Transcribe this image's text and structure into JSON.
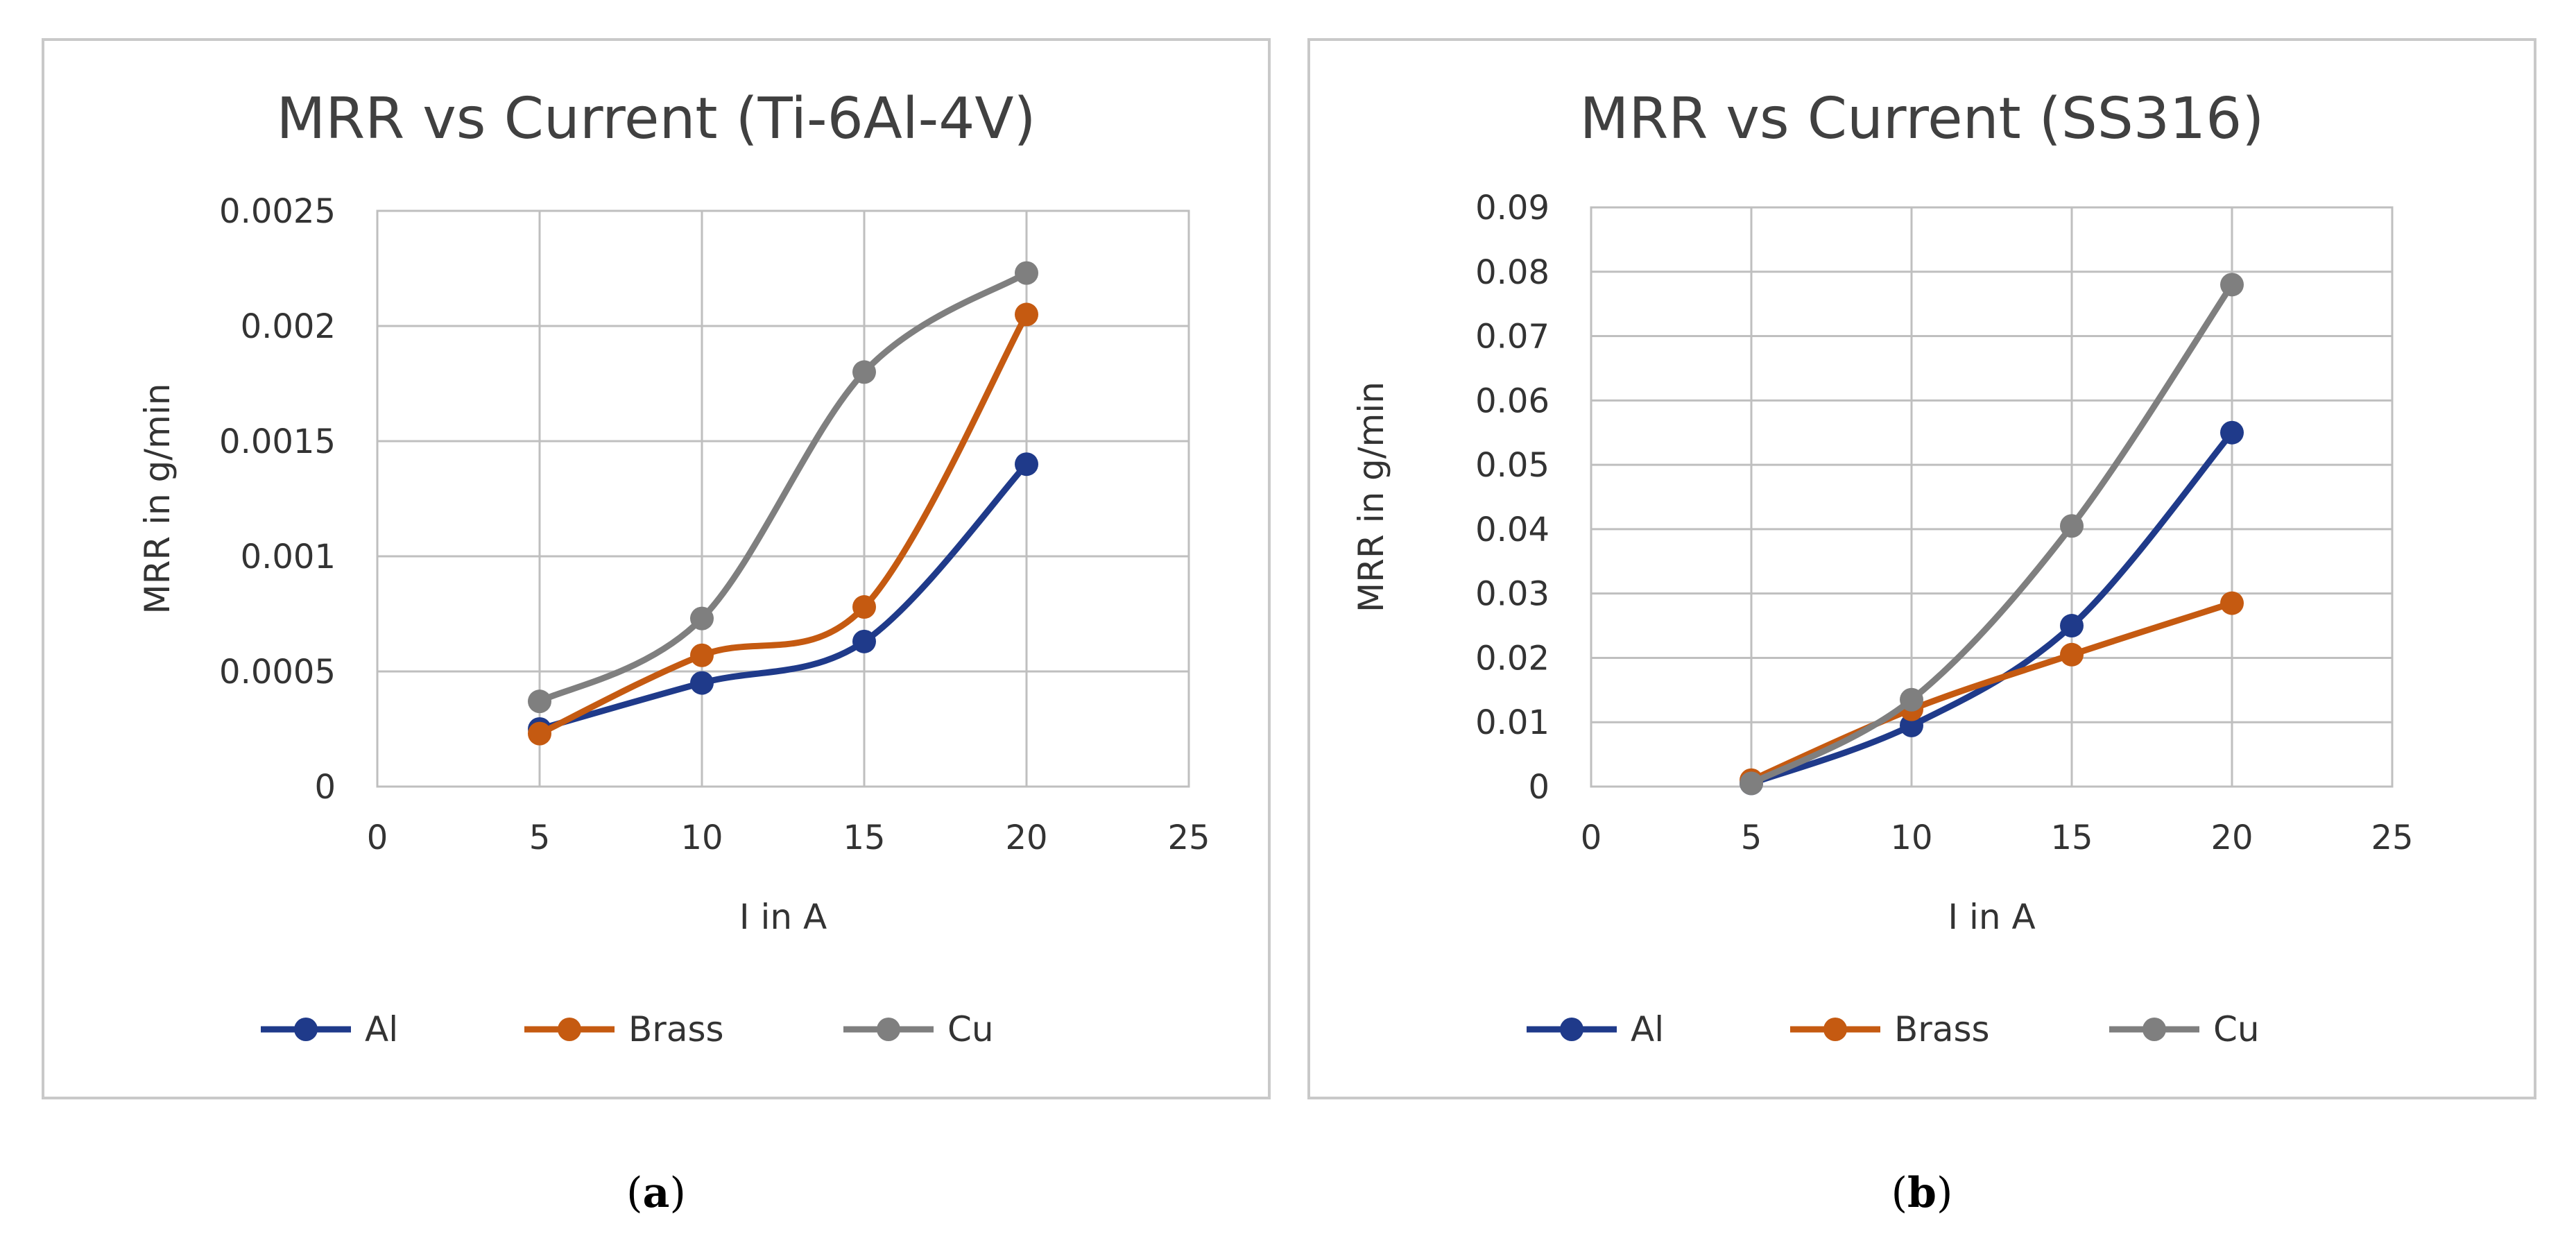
{
  "figures": [
    {
      "caption_label": "a",
      "chart_data": {
        "type": "line",
        "title": "MRR vs Current (Ti-6Al-4V)",
        "xlabel": "I in A",
        "ylabel": "MRR in g/min",
        "xlim": [
          0,
          25
        ],
        "ylim": [
          0,
          0.0025
        ],
        "xticks": [
          "0",
          "5",
          "10",
          "15",
          "20",
          "25"
        ],
        "yticks": [
          "0",
          "0.0005",
          "0.001",
          "0.0015",
          "0.002",
          "0.0025"
        ],
        "grid": true,
        "legend": "bottom",
        "x": [
          5,
          10,
          15,
          20
        ],
        "series": [
          {
            "name": "Al",
            "color": "#1f3a8a",
            "values": [
              0.00025,
              0.00045,
              0.00063,
              0.0014
            ]
          },
          {
            "name": "Brass",
            "color": "#c55a11",
            "values": [
              0.00023,
              0.00057,
              0.00078,
              0.00205
            ]
          },
          {
            "name": "Cu",
            "color": "#7f7f7f",
            "values": [
              0.00037,
              0.00073,
              0.0018,
              0.00223
            ]
          }
        ]
      }
    },
    {
      "caption_label": "b",
      "chart_data": {
        "type": "line",
        "title": "MRR vs Current (SS316)",
        "xlabel": "I in A",
        "ylabel": "MRR in g/min",
        "xlim": [
          0,
          25
        ],
        "ylim": [
          0,
          0.09
        ],
        "xticks": [
          "0",
          "5",
          "10",
          "15",
          "20",
          "25"
        ],
        "yticks": [
          "0",
          "0.01",
          "0.02",
          "0.03",
          "0.04",
          "0.05",
          "0.06",
          "0.07",
          "0.08",
          "0.09"
        ],
        "grid": true,
        "legend": "bottom",
        "x": [
          5,
          10,
          15,
          20
        ],
        "series": [
          {
            "name": "Al",
            "color": "#1f3a8a",
            "values": [
              0.0005,
              0.0095,
              0.025,
              0.055
            ]
          },
          {
            "name": "Brass",
            "color": "#c55a11",
            "values": [
              0.001,
              0.012,
              0.0205,
              0.0285
            ]
          },
          {
            "name": "Cu",
            "color": "#7f7f7f",
            "values": [
              0.0005,
              0.0135,
              0.0405,
              0.078
            ]
          }
        ]
      }
    }
  ]
}
